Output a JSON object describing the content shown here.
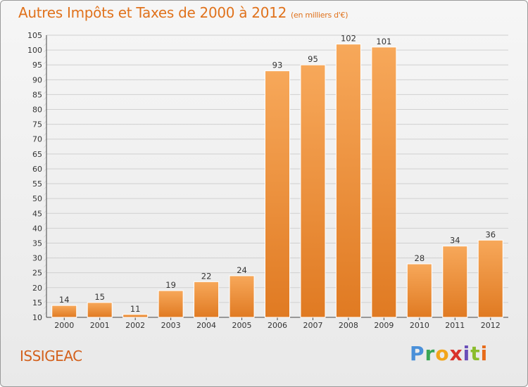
{
  "title": "Autres Impôts et Taxes de 2000 à 2012",
  "subtitle": "(en milliers d'€)",
  "commune": "ISSIGEAC",
  "logo_text": "Proxiti",
  "colors": {
    "bar_top": "#f7a85a",
    "bar_bottom": "#e07a22",
    "title": "#e0721c",
    "grid": "#d0d0d0"
  },
  "chart_data": {
    "type": "bar",
    "title": "Autres Impôts et Taxes de 2000 à 2012",
    "ylabel": "",
    "xlabel": "",
    "categories": [
      "2000",
      "2001",
      "2002",
      "2003",
      "2004",
      "2005",
      "2006",
      "2007",
      "2008",
      "2009",
      "2010",
      "2011",
      "2012"
    ],
    "values": [
      14,
      15,
      11,
      19,
      22,
      24,
      93,
      95,
      102,
      101,
      28,
      34,
      36
    ],
    "ylim": [
      10,
      105
    ],
    "yticks": [
      10,
      15,
      20,
      25,
      30,
      35,
      40,
      45,
      50,
      55,
      60,
      65,
      70,
      75,
      80,
      85,
      90,
      95,
      100,
      105
    ],
    "grid": true
  }
}
